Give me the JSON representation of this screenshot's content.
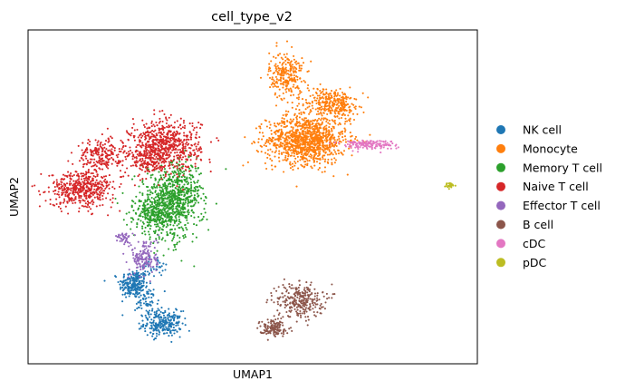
{
  "chart_data": {
    "type": "scatter",
    "title": "cell_type_v2",
    "xlabel": "UMAP1",
    "ylabel": "UMAP2",
    "xlim": [
      0,
      100
    ],
    "ylim": [
      0,
      100
    ],
    "grid": false,
    "ticks": false,
    "legend_placement": "right",
    "series": [
      {
        "name": "NK cell",
        "color": "#1f77b4",
        "clusters": [
          {
            "cx": 23.5,
            "cy": 23.8,
            "sx": 1.6,
            "sy": 2.2,
            "n": 230
          },
          {
            "cx": 30.0,
            "cy": 12.0,
            "sx": 2.1,
            "sy": 1.9,
            "n": 250
          },
          {
            "cx": 26.5,
            "cy": 18.5,
            "sx": 1.3,
            "sy": 2.4,
            "n": 70
          },
          {
            "cx": 27.8,
            "cy": 29.0,
            "sx": 1.4,
            "sy": 1.4,
            "n": 40
          }
        ]
      },
      {
        "name": "Monocyte",
        "color": "#ff7f0e",
        "clusters": [
          {
            "cx": 62.0,
            "cy": 67.0,
            "sx": 4.4,
            "sy": 3.6,
            "n": 1100
          },
          {
            "cx": 57.5,
            "cy": 86.5,
            "sx": 1.9,
            "sy": 3.5,
            "n": 260
          },
          {
            "cx": 66.5,
            "cy": 78.5,
            "sx": 3.3,
            "sy": 2.2,
            "n": 200
          },
          {
            "cx": 69.5,
            "cy": 77.0,
            "sx": 2.0,
            "sy": 2.0,
            "n": 120
          }
        ]
      },
      {
        "name": "Memory T cell",
        "color": "#2ca02c",
        "clusters": [
          {
            "cx": 31.0,
            "cy": 47.0,
            "sx": 3.6,
            "sy": 5.2,
            "n": 650
          },
          {
            "cx": 34.0,
            "cy": 52.0,
            "sx": 2.5,
            "sy": 4.0,
            "n": 250
          },
          {
            "cx": 27.0,
            "cy": 45.0,
            "sx": 1.7,
            "sy": 2.0,
            "n": 120
          }
        ]
      },
      {
        "name": "Naive T cell",
        "color": "#d62728",
        "clusters": [
          {
            "cx": 30.5,
            "cy": 65.5,
            "sx": 3.9,
            "sy": 3.8,
            "n": 650
          },
          {
            "cx": 12.0,
            "cy": 52.5,
            "sx": 3.6,
            "sy": 2.7,
            "n": 480
          },
          {
            "cx": 16.0,
            "cy": 62.5,
            "sx": 2.4,
            "sy": 2.4,
            "n": 200
          },
          {
            "cx": 26.5,
            "cy": 61.0,
            "sx": 2.4,
            "sy": 2.0,
            "n": 150
          }
        ]
      },
      {
        "name": "Effector T cell",
        "color": "#9467bd",
        "clusters": [
          {
            "cx": 26.0,
            "cy": 32.0,
            "sx": 1.5,
            "sy": 3.0,
            "n": 160
          },
          {
            "cx": 21.5,
            "cy": 37.5,
            "sx": 0.8,
            "sy": 1.0,
            "n": 40
          }
        ]
      },
      {
        "name": "B cell",
        "color": "#8c564b",
        "clusters": [
          {
            "cx": 60.5,
            "cy": 19.0,
            "sx": 2.6,
            "sy": 2.6,
            "n": 280
          },
          {
            "cx": 54.5,
            "cy": 10.8,
            "sx": 1.5,
            "sy": 1.2,
            "n": 140
          }
        ]
      },
      {
        "name": "cDC",
        "color": "#e377c2",
        "clusters": [
          {
            "cx": 75.5,
            "cy": 65.7,
            "sx": 3.0,
            "sy": 0.7,
            "n": 160
          }
        ]
      },
      {
        "name": "pDC",
        "color": "#bcbd22",
        "clusters": [
          {
            "cx": 94.0,
            "cy": 53.5,
            "sx": 0.6,
            "sy": 0.4,
            "n": 25
          }
        ]
      }
    ]
  }
}
